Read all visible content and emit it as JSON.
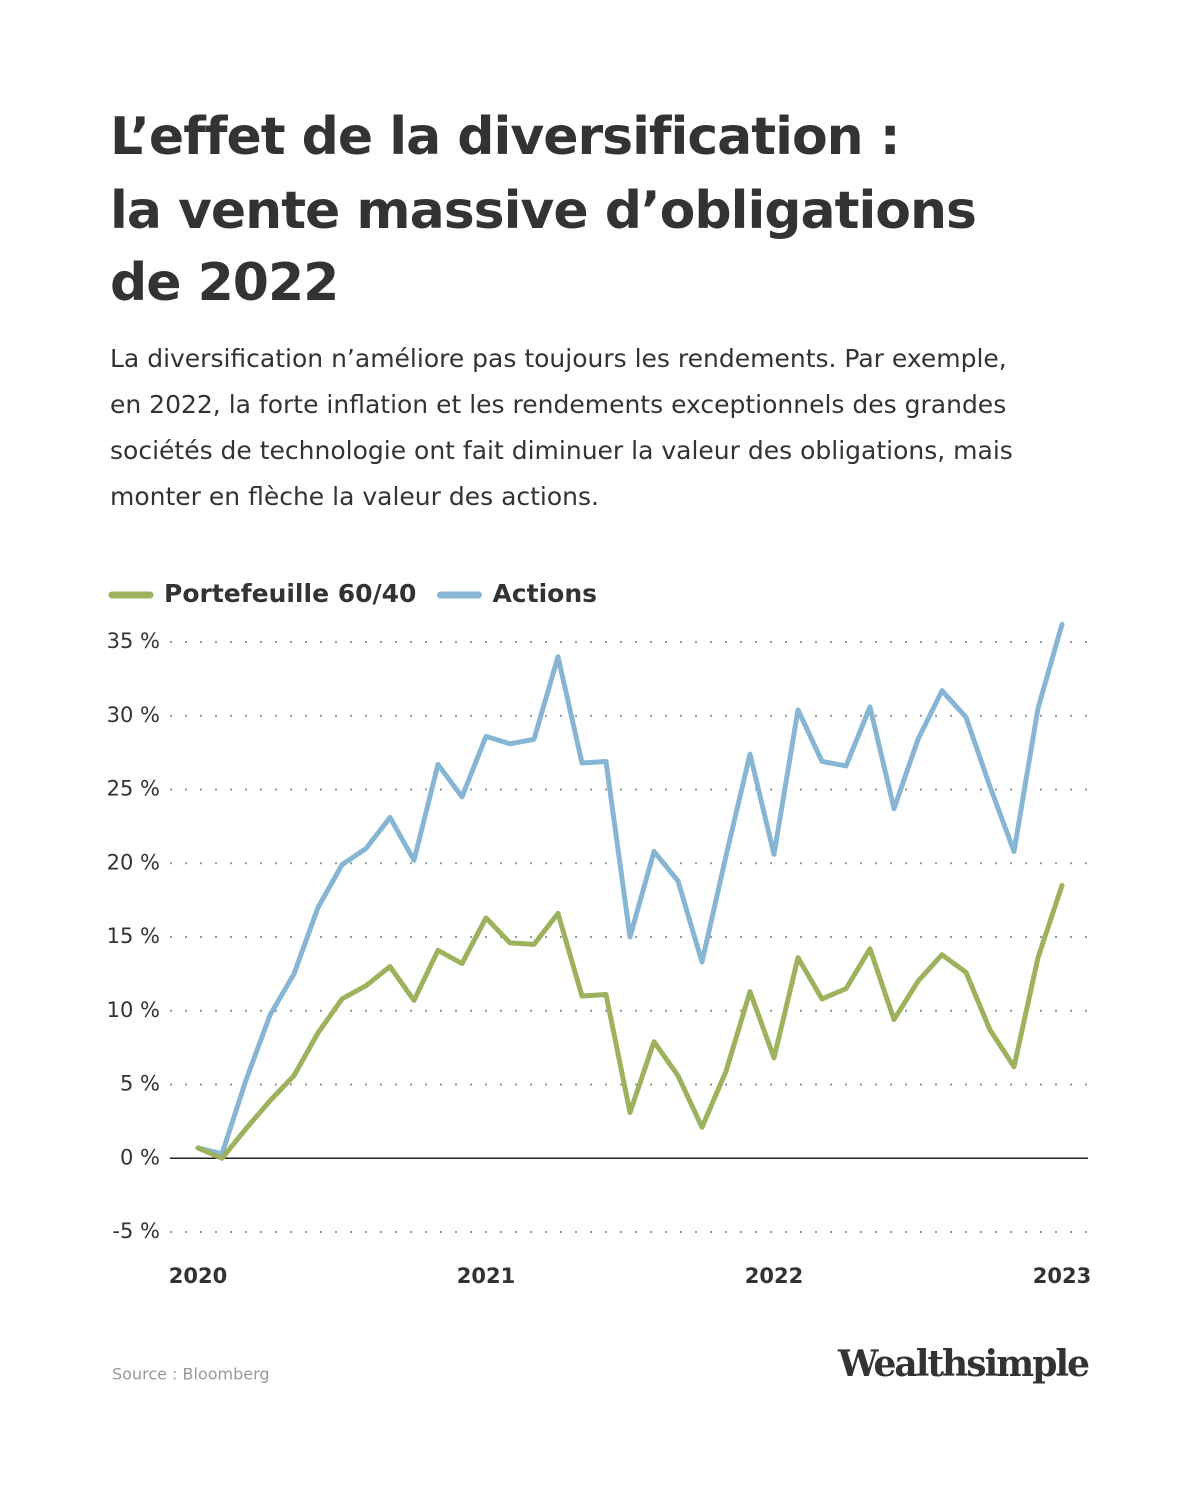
{
  "chart_data": {
    "type": "line",
    "title": [
      "L’effet de la diversification :",
      "la vente massive d’obligations",
      "de 2022"
    ],
    "subtitle": [
      "La diversification n’améliore pas toujours les rendements. Par exemple,",
      "en 2022, la forte inflation et les rendements exceptionnels des grandes",
      "sociétés de technologie ont fait diminuer la valeur des obligations, mais",
      "monter en flèche la valeur des actions."
    ],
    "categories": [
      "2020",
      null,
      null,
      null,
      null,
      null,
      null,
      null,
      null,
      null,
      null,
      null,
      "2021",
      null,
      null,
      null,
      null,
      null,
      null,
      null,
      null,
      null,
      null,
      null,
      "2022",
      null,
      null,
      null,
      null,
      null,
      null,
      null,
      null,
      null,
      null,
      null,
      "2023"
    ],
    "series": [
      {
        "name": "Portefeuille 60/40",
        "color": "#9db25d",
        "values": [
          0.7,
          0.0,
          2.0,
          3.9,
          5.6,
          8.5,
          10.8,
          11.7,
          13.0,
          10.7,
          14.1,
          13.2,
          16.3,
          14.6,
          14.5,
          16.6,
          11.0,
          11.1,
          3.1,
          7.9,
          5.6,
          2.1,
          5.9,
          11.3,
          6.8,
          13.6,
          10.8,
          11.5,
          14.2,
          9.4,
          12.0,
          13.8,
          12.6,
          8.7,
          6.2,
          13.6,
          18.5
        ]
      },
      {
        "name": "Actions",
        "color": "#86b6d3",
        "values": [
          0.7,
          0.3,
          5.3,
          9.7,
          12.5,
          17.0,
          19.9,
          21.0,
          23.1,
          20.2,
          26.7,
          24.5,
          28.6,
          28.1,
          28.4,
          34.0,
          26.8,
          26.9,
          15.0,
          20.8,
          18.8,
          13.3,
          20.5,
          27.4,
          20.6,
          30.4,
          26.9,
          26.6,
          30.6,
          23.7,
          28.4,
          31.7,
          29.9,
          25.2,
          20.8,
          30.5,
          36.2
        ]
      }
    ],
    "ylim": [
      -5,
      35
    ],
    "yticks": [
      {
        "value": -5,
        "label": "-5 %"
      },
      {
        "value": 0,
        "label": "0 %"
      },
      {
        "value": 5,
        "label": "5 %"
      },
      {
        "value": 10,
        "label": "10 %"
      },
      {
        "value": 15,
        "label": "15 %"
      },
      {
        "value": 20,
        "label": "20 %"
      },
      {
        "value": 25,
        "label": "25 %"
      },
      {
        "value": 30,
        "label": "30 %"
      },
      {
        "value": 35,
        "label": "35 %"
      }
    ],
    "grid": true,
    "source": "Source : Bloomberg",
    "brand": "Wealthsimple"
  }
}
